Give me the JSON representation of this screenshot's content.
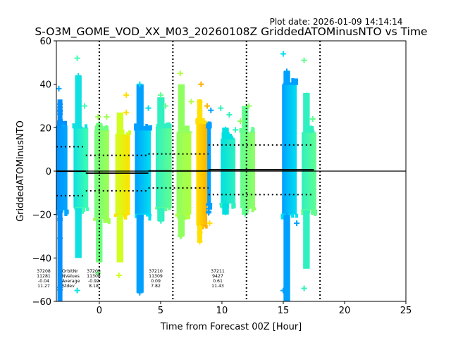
{
  "chart_data": {
    "type": "scatter",
    "title": "S-O3M_GOME_VOD_XX_M03_20260108Z GriddedATOMinusNTO vs Time",
    "plot_date": "Plot date: 2026-01-09 14:14:14",
    "xlabel": "Time from Forecast 00Z [Hour]",
    "ylabel": "GriddedATOMinusNTO",
    "xlim": [
      -3.5,
      25
    ],
    "ylim": [
      -60,
      60
    ],
    "xticks": [
      "0",
      "5",
      "10",
      "15",
      "20",
      "25"
    ],
    "xtick_values": [
      0,
      5,
      10,
      15,
      20,
      25
    ],
    "yticks": [
      "60",
      "40",
      "20",
      "0",
      "−20",
      "−40",
      "−60"
    ],
    "ytick_values": [
      60,
      40,
      20,
      0,
      -20,
      -40,
      -60
    ],
    "orbit_boundaries": [
      0,
      6,
      12,
      18
    ],
    "zero_line": 0,
    "columns": [
      {
        "x0": -3.5,
        "x1": -2.6,
        "core": [
          -18,
          21
        ],
        "tail": [
          -60,
          33
        ],
        "colors": [
          "#0090ff",
          "#00a8ff"
        ],
        "outliers": [
          [
            -3.3,
            38
          ],
          [
            -2.9,
            21
          ]
        ]
      },
      {
        "x0": -2.1,
        "x1": -0.9,
        "core": [
          -17,
          20
        ],
        "tail": [
          -40,
          44
        ],
        "colors": [
          "#10e0e0",
          "#40ffb0"
        ],
        "outliers": [
          [
            -1.8,
            52
          ],
          [
            -1.2,
            30
          ],
          [
            -1.8,
            -55
          ]
        ]
      },
      {
        "x0": -0.4,
        "x1": 0.8,
        "core": [
          -22,
          19
        ],
        "tail": [
          -42,
          22
        ],
        "colors": [
          "#70ff80",
          "#a0ff50"
        ],
        "outliers": [
          [
            -0.1,
            25
          ],
          [
            0.6,
            25
          ],
          [
            -0.1,
            -47
          ]
        ]
      },
      {
        "x0": 1.3,
        "x1": 2.5,
        "core": [
          -20,
          17
        ],
        "tail": [
          -42,
          27
        ],
        "colors": [
          "#d0ff20",
          "#ffe000"
        ],
        "outliers": [
          [
            2.2,
            35
          ],
          [
            2.2,
            27
          ],
          [
            1.6,
            -48
          ]
        ]
      },
      {
        "x0": 2.9,
        "x1": 4.2,
        "core": [
          -20,
          19
        ],
        "tail": [
          -56,
          40
        ],
        "colors": [
          "#00a0ff",
          "#00e0f0"
        ],
        "outliers": [
          [
            3.3,
            40
          ],
          [
            4.0,
            29
          ],
          [
            3.3,
            -56
          ]
        ]
      },
      {
        "x0": 4.6,
        "x1": 5.9,
        "core": [
          -17,
          20
        ],
        "tail": [
          -23,
          34
        ],
        "colors": [
          "#30f0c0",
          "#60ff90"
        ],
        "outliers": [
          [
            5.0,
            35
          ],
          [
            5.4,
            30
          ]
        ]
      },
      {
        "x0": 6.3,
        "x1": 7.5,
        "core": [
          -20,
          18
        ],
        "tail": [
          -30,
          40
        ],
        "colors": [
          "#90ff60",
          "#b0ff40"
        ],
        "outliers": [
          [
            6.6,
            45
          ],
          [
            7.5,
            32
          ],
          [
            6.6,
            -30
          ]
        ]
      },
      {
        "x0": 7.9,
        "x1": 8.8,
        "core": [
          -25,
          22
        ],
        "tail": [
          -33,
          33
        ],
        "colors": [
          "#ffe000",
          "#ffb000"
        ],
        "outliers": [
          [
            8.3,
            40
          ],
          [
            8.8,
            30
          ],
          [
            9.0,
            -24
          ]
        ]
      },
      {
        "x0": 8.8,
        "x1": 9.1,
        "core": [
          -15,
          20
        ],
        "tail": [
          -20,
          20
        ],
        "colors": [
          "#00a0ff",
          "#00a0ff"
        ],
        "outliers": [
          [
            9.1,
            28
          ]
        ]
      },
      {
        "x0": 9.9,
        "x1": 11.1,
        "core": [
          -15,
          15
        ],
        "tail": [
          -20,
          20
        ],
        "colors": [
          "#00e0e0",
          "#30f0c0"
        ],
        "outliers": [
          [
            9.9,
            29
          ],
          [
            10.6,
            26
          ],
          [
            11.1,
            19
          ]
        ]
      },
      {
        "x0": 11.5,
        "x1": 12.7,
        "core": [
          -17,
          18
        ],
        "tail": [
          -20,
          30
        ],
        "colors": [
          "#60ff90",
          "#90ff60"
        ],
        "outliers": [
          [
            12.2,
            30
          ],
          [
            11.5,
            23
          ],
          [
            11.8,
            -16
          ]
        ]
      },
      {
        "x0": 14.9,
        "x1": 16.1,
        "core": [
          -20,
          40
        ],
        "tail": [
          -60,
          46
        ],
        "colors": [
          "#00a0ff",
          "#00e0f0"
        ],
        "outliers": [
          [
            15.0,
            54
          ],
          [
            15.0,
            -55
          ],
          [
            16.1,
            -24
          ]
        ]
      },
      {
        "x0": 16.5,
        "x1": 17.7,
        "core": [
          -18,
          18
        ],
        "tail": [
          -45,
          36
        ],
        "colors": [
          "#30f0c0",
          "#60ff90"
        ],
        "outliers": [
          [
            16.7,
            51
          ],
          [
            16.7,
            -54
          ],
          [
            17.4,
            24
          ]
        ]
      }
    ],
    "stats_labels": [
      "OrbitNr",
      "NValues",
      "Average",
      "Stdev"
    ],
    "orbits": [
      {
        "orbit": "37208",
        "nvalues": "11281",
        "average": "-0.04",
        "stdev": "11.27",
        "x0": -3.5,
        "x1": -1.1,
        "mean": -0.04,
        "sd": 11.27
      },
      {
        "orbit": "37209",
        "nvalues": "11308",
        "average": "-0.92",
        "stdev": "8.18",
        "x0": -1.1,
        "x1": 4.0,
        "mean": -0.92,
        "sd": 8.18
      },
      {
        "orbit": "37210",
        "nvalues": "11309",
        "average": "0.09",
        "stdev": "7.82",
        "x0": 4.0,
        "x1": 8.9,
        "mean": 0.09,
        "sd": 7.82
      },
      {
        "orbit": "37211",
        "nvalues": "9427",
        "average": "0.61",
        "stdev": "11.43",
        "x0": 8.9,
        "x1": 17.5,
        "mean": 0.61,
        "sd": 11.43
      }
    ]
  }
}
